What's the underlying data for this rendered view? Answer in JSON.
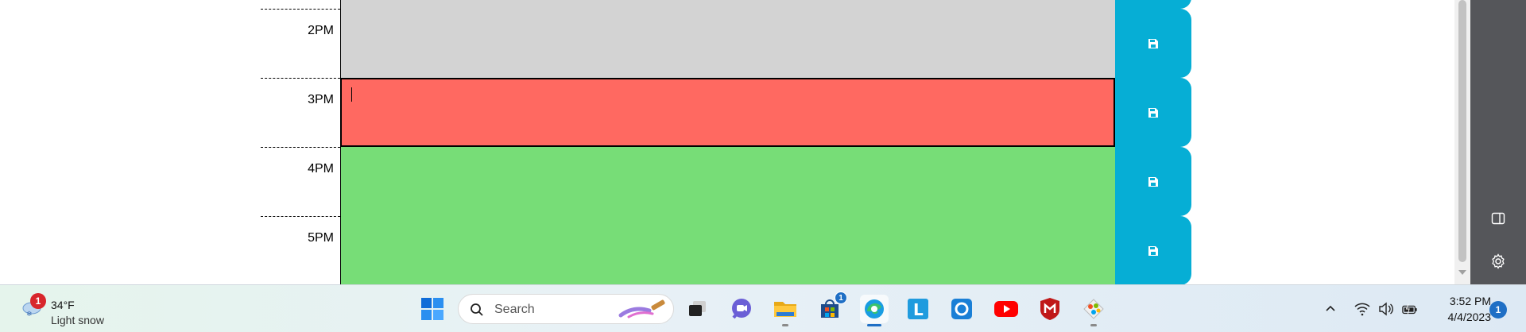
{
  "planner": {
    "rows": [
      {
        "hour": "",
        "state": "past",
        "text": ""
      },
      {
        "hour": "2PM",
        "state": "past",
        "text": ""
      },
      {
        "hour": "3PM",
        "state": "present",
        "text": ""
      },
      {
        "hour": "4PM",
        "state": "future",
        "text": ""
      },
      {
        "hour": "5PM",
        "state": "future",
        "text": ""
      }
    ],
    "save_icon": "floppy-disk-icon"
  },
  "sidebar": {
    "icons": [
      "split-screen-icon",
      "gear-icon"
    ]
  },
  "taskbar": {
    "weather": {
      "badge": "1",
      "temperature": "34°F",
      "condition": "Light snow",
      "icon": "snow-cloud-icon"
    },
    "search": {
      "placeholder": "Search"
    },
    "apps": [
      {
        "name": "start-button",
        "icon": "windows-logo-icon"
      },
      {
        "name": "task-view",
        "icon": "task-view-icon"
      },
      {
        "name": "teams-chat",
        "icon": "chat-icon"
      },
      {
        "name": "file-explorer",
        "icon": "folder-icon",
        "running": true
      },
      {
        "name": "microsoft-store",
        "icon": "store-icon",
        "badge": "1"
      },
      {
        "name": "edge",
        "icon": "edge-icon",
        "active": true
      },
      {
        "name": "l-app",
        "icon": "l-letter-icon"
      },
      {
        "name": "cortana",
        "icon": "ring-icon"
      },
      {
        "name": "youtube",
        "icon": "youtube-icon"
      },
      {
        "name": "mcafee",
        "icon": "mcafee-icon"
      },
      {
        "name": "paint",
        "icon": "paint-icon",
        "running": true
      }
    ],
    "tray": {
      "icons": [
        "chevron-up-icon",
        "wifi-icon",
        "volume-icon",
        "battery-icon"
      ],
      "time": "3:52 PM",
      "date": "4/4/2023",
      "notifications": "1"
    }
  },
  "colors": {
    "past": "#d3d3d3",
    "present": "#ff6961",
    "future": "#77dd77",
    "save": "#06aed5"
  }
}
